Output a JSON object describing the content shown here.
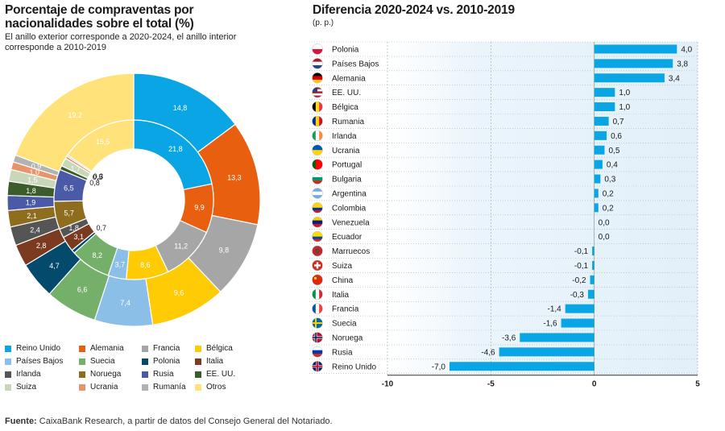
{
  "left": {
    "title": "Porcentaje de compraventas por nacionalidades sobre el total (%)",
    "subtitle": "El anillo exterior corresponde a 2020-2024, el anillo interior corresponde a 2010-2019"
  },
  "right": {
    "title": "Diferencia 2020-2024 vs. 2010-2019",
    "subtitle": "(p. p.)"
  },
  "source": {
    "label": "Fuente:",
    "text": " CaixaBank Research, a partir de datos del Consejo General del Notariado."
  },
  "colors": {
    "Reino Unido": "#0aa5e4",
    "Alemania": "#e8600f",
    "Francia": "#a6a6a6",
    "Bélgica": "#ffcb05",
    "Países Bajos": "#8bbfe8",
    "Suecia": "#74b06a",
    "Polonia": "#034a6c",
    "Italia": "#7a3b21",
    "Irlanda": "#555555",
    "Noruega": "#8e6d1f",
    "Rusia": "#4a5aa6",
    "EE. UU.": "#3c5c2b",
    "Suiza": "#c8d7b8",
    "Ucrania": "#e7946a",
    "Rumanía": "#b2b2b2",
    "Otros": "#ffe27a",
    "bar": "#0aa5e4"
  },
  "legend": {
    "items": [
      "Reino Unido",
      "Alemania",
      "Francia",
      "Bélgica",
      "Países Bajos",
      "Suecia",
      "Polonia",
      "Italia",
      "Irlanda",
      "Noruega",
      "Rusia",
      "EE. UU.",
      "Suiza",
      "Ucrania",
      "Rumanía",
      "Otros"
    ]
  },
  "chart_data": [
    {
      "type": "pie",
      "title": "Porcentaje de compraventas por nacionalidades sobre el total (%)",
      "subtitle": "El anillo exterior corresponde a 2020-2024, el anillo interior corresponde a 2010-2019",
      "series": [
        {
          "name": "2020-2024",
          "slices": [
            {
              "label": "Reino Unido",
              "value": 14.8
            },
            {
              "label": "Alemania",
              "value": 13.3
            },
            {
              "label": "Francia",
              "value": 9.8
            },
            {
              "label": "Bélgica",
              "value": 9.6
            },
            {
              "label": "Países Bajos",
              "value": 7.4
            },
            {
              "label": "Suecia",
              "value": 6.6
            },
            {
              "label": "Polonia",
              "value": 4.7
            },
            {
              "label": "Italia",
              "value": 2.8
            },
            {
              "label": "Irlanda",
              "value": 2.4
            },
            {
              "label": "Noruega",
              "value": 2.1
            },
            {
              "label": "Rusia",
              "value": 1.9
            },
            {
              "label": "EE. UU.",
              "value": 1.8
            },
            {
              "label": "Suiza",
              "value": 1.5
            },
            {
              "label": "Ucrania",
              "value": 1.0
            },
            {
              "label": "Rumanía",
              "value": 0.9
            },
            {
              "label": "Otros",
              "value": 19.2
            }
          ]
        },
        {
          "name": "2010-2019",
          "slices": [
            {
              "label": "Reino Unido",
              "value": 21.8
            },
            {
              "label": "Alemania",
              "value": 9.9
            },
            {
              "label": "Francia",
              "value": 11.2
            },
            {
              "label": "Bélgica",
              "value": 8.6
            },
            {
              "label": "Países Bajos",
              "value": 3.7
            },
            {
              "label": "Suecia",
              "value": 8.2
            },
            {
              "label": "Polonia",
              "value": 0.7
            },
            {
              "label": "Italia",
              "value": 3.1
            },
            {
              "label": "Irlanda",
              "value": 1.8
            },
            {
              "label": "Noruega",
              "value": 5.7
            },
            {
              "label": "Rusia",
              "value": 6.5
            },
            {
              "label": "EE. UU.",
              "value": 0.8
            },
            {
              "label": "Suiza",
              "value": 1.7
            },
            {
              "label": "Ucrania",
              "value": 0.5
            },
            {
              "label": "Rumanía",
              "value": 0.3
            },
            {
              "label": "Otros",
              "value": 15.5
            }
          ]
        }
      ]
    },
    {
      "type": "bar",
      "orientation": "horizontal",
      "title": "Diferencia 2020-2024 vs. 2010-2019",
      "subtitle": "(p. p.)",
      "xlim": [
        -10,
        5
      ],
      "xticks": [
        -10,
        -5,
        0,
        5
      ],
      "xtick_labels": [
        "-10",
        "-5",
        "0",
        "5"
      ],
      "categories": [
        "Polonia",
        "Países Bajos",
        "Alemania",
        "EE. UU.",
        "Bélgica",
        "Rumania",
        "Irlanda",
        "Ucrania",
        "Portugal",
        "Bulgaria",
        "Argentina",
        "Colombia",
        "Venezuela",
        "Ecuador",
        "Marruecos",
        "Suiza",
        "China",
        "Italia",
        "Francia",
        "Suecia",
        "Noruega",
        "Rusia",
        "Reino Unido"
      ],
      "values": [
        4.0,
        3.8,
        3.4,
        1.0,
        1.0,
        0.7,
        0.6,
        0.5,
        0.4,
        0.3,
        0.2,
        0.2,
        0.0,
        0.0,
        -0.1,
        -0.1,
        -0.2,
        -0.3,
        -1.4,
        -1.6,
        -3.6,
        -4.6,
        -7.0
      ],
      "value_labels": [
        "4,0",
        "3,8",
        "3,4",
        "1,0",
        "1,0",
        "0,7",
        "0,6",
        "0,5",
        "0,4",
        "0,3",
        "0,2",
        "0,2",
        "0,0",
        "0,0",
        "-0,1",
        "-0,1",
        "-0,2",
        "-0,3",
        "-1,4",
        "-1,6",
        "-3,6",
        "-4,6",
        "-7,0"
      ],
      "flag_icons": [
        "flag-poland-icon",
        "flag-netherlands-icon",
        "flag-germany-icon",
        "flag-usa-icon",
        "flag-belgium-icon",
        "flag-romania-icon",
        "flag-ireland-icon",
        "flag-ukraine-icon",
        "flag-portugal-icon",
        "flag-bulgaria-icon",
        "flag-argentina-icon",
        "flag-colombia-icon",
        "flag-venezuela-icon",
        "flag-ecuador-icon",
        "flag-morocco-icon",
        "flag-switzerland-icon",
        "flag-china-icon",
        "flag-italy-icon",
        "flag-france-icon",
        "flag-sweden-icon",
        "flag-norway-icon",
        "flag-russia-icon",
        "flag-uk-icon"
      ]
    }
  ]
}
